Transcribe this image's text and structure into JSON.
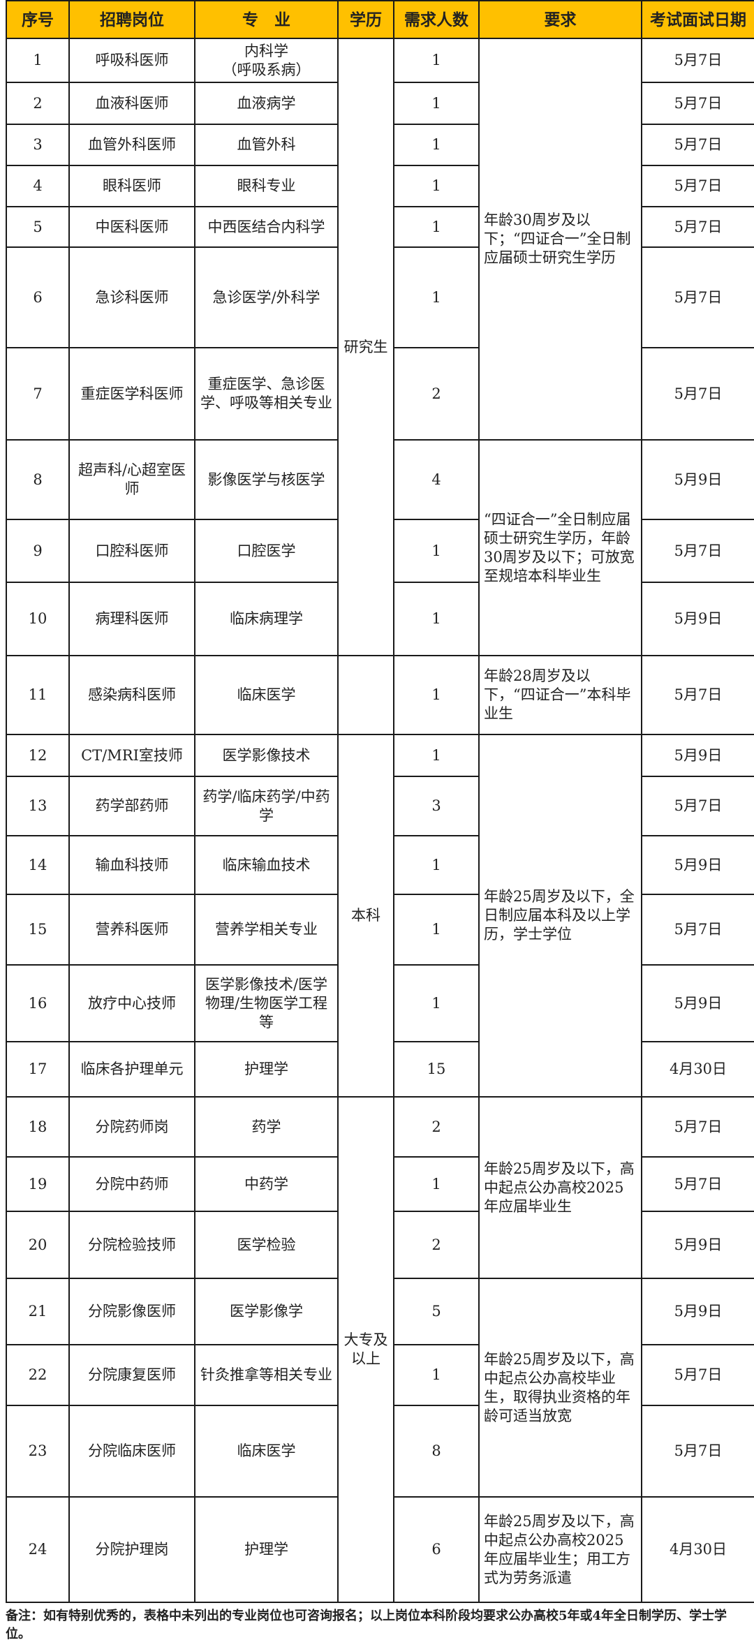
{
  "header": [
    "序号",
    "招聘岗位",
    "专　业",
    "学历",
    "需求人数",
    "要求",
    "考试面试日期"
  ],
  "rows": [
    {
      "no": "1",
      "post": "呼吸科医师",
      "major": "内科学\n（呼吸系病）",
      "count": "1",
      "date": "5月7日"
    },
    {
      "no": "2",
      "post": "血液科医师",
      "major": "血液病学",
      "count": "1",
      "date": "5月7日"
    },
    {
      "no": "3",
      "post": "血管外科医师",
      "major": "血管外科",
      "count": "1",
      "date": "5月7日"
    },
    {
      "no": "4",
      "post": "眼科医师",
      "major": "眼科专业",
      "count": "1",
      "date": "5月7日"
    },
    {
      "no": "5",
      "post": "中医科医师",
      "major": "中西医结合内科学",
      "count": "1",
      "date": "5月7日"
    },
    {
      "no": "6",
      "post": "急诊科医师",
      "major": "急诊医学/外科学",
      "count": "1",
      "date": "5月7日"
    },
    {
      "no": "7",
      "post": "重症医学科医师",
      "major": "重症医学、急诊医学、呼吸等相关专业",
      "count": "2",
      "date": "5月7日"
    },
    {
      "no": "8",
      "post": "超声科/心超室医师",
      "major": "影像医学与核医学",
      "count": "4",
      "date": "5月9日"
    },
    {
      "no": "9",
      "post": "口腔科医师",
      "major": "口腔医学",
      "count": "1",
      "date": "5月7日"
    },
    {
      "no": "10",
      "post": "病理科医师",
      "major": "临床病理学",
      "count": "1",
      "date": "5月9日"
    },
    {
      "no": "11",
      "post": "感染病科医师",
      "major": "临床医学",
      "count": "1",
      "date": "5月7日"
    },
    {
      "no": "12",
      "post": "CT/MRI室技师",
      "major": "医学影像技术",
      "count": "1",
      "date": "5月9日"
    },
    {
      "no": "13",
      "post": "药学部药师",
      "major": "药学/临床药学/中药学",
      "count": "3",
      "date": "5月7日"
    },
    {
      "no": "14",
      "post": "输血科技师",
      "major": "临床输血技术",
      "count": "1",
      "date": "5月9日"
    },
    {
      "no": "15",
      "post": "营养科医师",
      "major": "营养学相关专业",
      "count": "1",
      "date": "5月7日"
    },
    {
      "no": "16",
      "post": "放疗中心技师",
      "major": "医学影像技术/医学物理/生物医学工程等",
      "count": "1",
      "date": "5月9日"
    },
    {
      "no": "17",
      "post": "临床各护理单元",
      "major": "护理学",
      "count": "15",
      "date": "4月30日"
    },
    {
      "no": "18",
      "post": "分院药师岗",
      "major": "药学",
      "count": "2",
      "date": "5月7日"
    },
    {
      "no": "19",
      "post": "分院中药师",
      "major": "中药学",
      "count": "1",
      "date": "5月7日"
    },
    {
      "no": "20",
      "post": "分院检验技师",
      "major": "医学检验",
      "count": "2",
      "date": "5月9日"
    },
    {
      "no": "21",
      "post": "分院影像医师",
      "major": "医学影像学",
      "count": "5",
      "date": "5月9日"
    },
    {
      "no": "22",
      "post": "分院康复医师",
      "major": "针灸推拿等相关专业",
      "count": "1",
      "date": "5月7日"
    },
    {
      "no": "23",
      "post": "分院临床医师",
      "major": "临床医学",
      "count": "8",
      "date": "5月7日"
    },
    {
      "no": "24",
      "post": "分院护理岗",
      "major": "护理学",
      "count": "6",
      "date": "4月30日"
    }
  ],
  "education_groups": [
    {
      "label": "研究生",
      "from": 1,
      "span": 10
    },
    {
      "label": "",
      "from": 11,
      "span": 1
    },
    {
      "label": "本科",
      "from": 12,
      "span": 6
    },
    {
      "label": "大专及以上",
      "from": 18,
      "span": 7
    }
  ],
  "requirement_groups": [
    {
      "text": "年龄30周岁及以下；“四证合一”全日制应届硕士研究生学历",
      "from": 1,
      "span": 7
    },
    {
      "text": "“四证合一”全日制应届硕士研究生学历，年龄30周岁及以下；可放宽至规培本科毕业生",
      "from": 8,
      "span": 3
    },
    {
      "text": "年龄28周岁及以下，“四证合一”本科毕业生",
      "from": 11,
      "span": 1
    },
    {
      "text": "年龄25周岁及以下，全日制应届本科及以上学历，学士学位",
      "from": 12,
      "span": 6
    },
    {
      "text": "年龄25周岁及以下，高中起点公办高校2025年应届毕业生",
      "from": 18,
      "span": 3
    },
    {
      "text": "年龄25周岁及以下，高中起点公办高校毕业生，取得执业资格的年龄可适当放宽",
      "from": 21,
      "span": 3
    },
    {
      "text": "年龄25周岁及以下，高中起点公办高校2025年应届毕业生；用工方式为劳务派遣",
      "from": 24,
      "span": 1
    }
  ],
  "header_color": "#ffc000",
  "note": "备注：如有特别优秀的，表格中未列出的专业岗位也可咨询报名；以上岗位本科阶段均要求公办高校5年或4年全日制学历、学士学位。"
}
